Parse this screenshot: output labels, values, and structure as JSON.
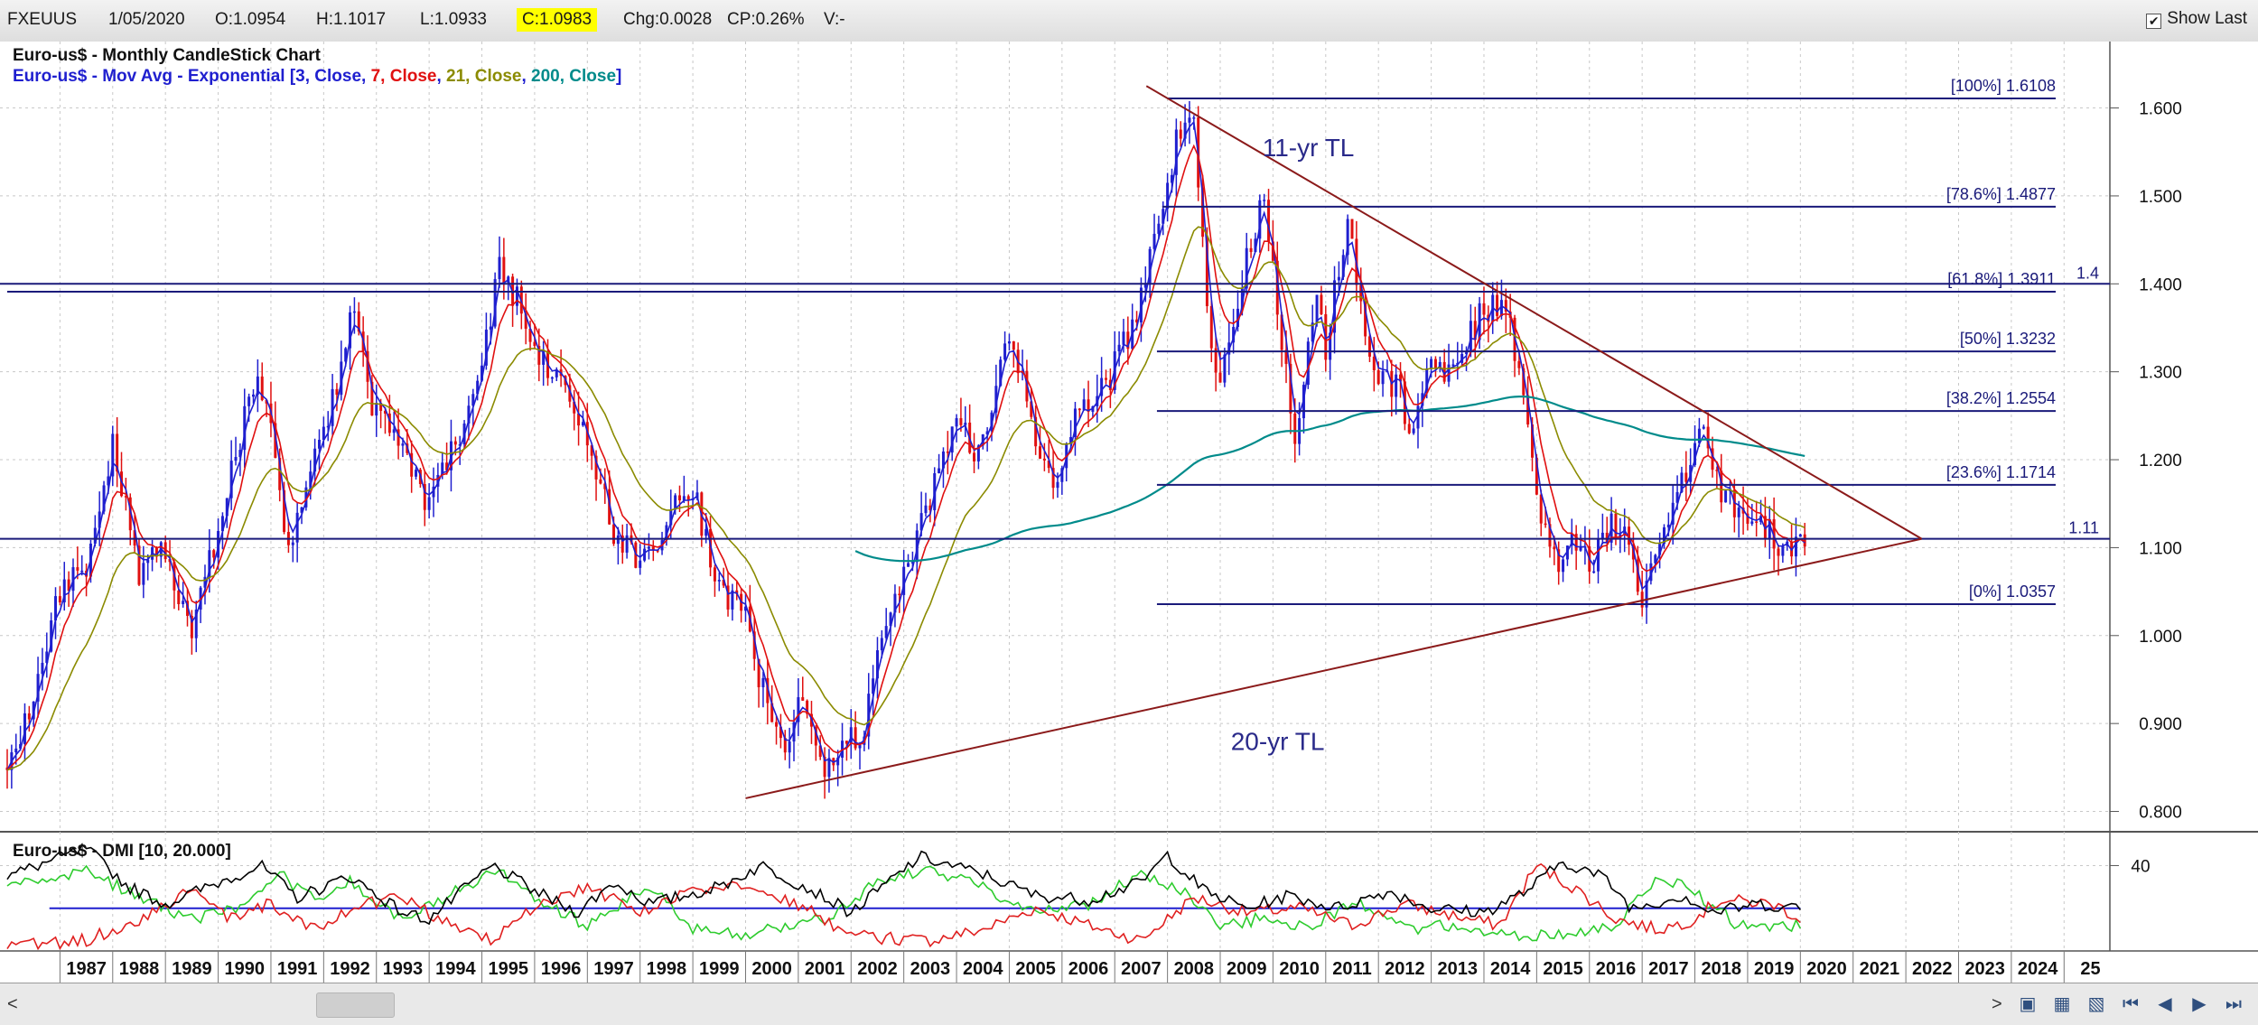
{
  "toolbar": {
    "symbol": "FXEUUS",
    "date": "1/05/2020",
    "open": "O:1.0954",
    "high": "H:1.1017",
    "low": "L:1.0933",
    "close": "C:1.0983",
    "change": "Chg:0.0028",
    "change_pct": "CP:0.26%",
    "volume": "V:-",
    "show_last_label": "Show Last",
    "show_last_checked": true
  },
  "colors": {
    "ema3": "#1f1fcf",
    "ema7": "#e01010",
    "ema21": "#8b8b00",
    "ema200": "#008b8b",
    "fib_lines": "#1a1a7a",
    "trend_lines": "#8b1a1a",
    "dmi_plus": "#2ecc2e",
    "dmi_minus": "#e02020",
    "adx": "#000000"
  },
  "bottom_nav": {
    "scroll_left": "<",
    "scroll_right": ">",
    "buttons": [
      "zoom-in",
      "zoom-out",
      "fit",
      "first",
      "prev",
      "next",
      "last"
    ]
  },
  "chart_data": [
    {
      "type": "candlestick",
      "title": "Euro-us$ - Monthly CandleStick Chart",
      "subtitle": {
        "prefix": "Euro-us$ - Mov Avg - Exponential [",
        "parts": [
          {
            "text": "3, Close",
            "color": "#1f1fcf"
          },
          {
            "text": ", ",
            "color": "#1f1fcf"
          },
          {
            "text": "7, Close",
            "color": "#e01010"
          },
          {
            "text": ", ",
            "color": "#1f1fcf"
          },
          {
            "text": "21, Close",
            "color": "#8b8b00"
          },
          {
            "text": ", ",
            "color": "#1f1fcf"
          },
          {
            "text": "200, Close",
            "color": "#008b8b"
          }
        ],
        "suffix": "]"
      },
      "x_ticks": [
        "1987",
        "1988",
        "1989",
        "1990",
        "1991",
        "1992",
        "1993",
        "1994",
        "1995",
        "1996",
        "1997",
        "1998",
        "1999",
        "2000",
        "2001",
        "2002",
        "2003",
        "2004",
        "2005",
        "2006",
        "2007",
        "2008",
        "2009",
        "2010",
        "2011",
        "2012",
        "2013",
        "2014",
        "2015",
        "2016",
        "2017",
        "2018",
        "2019",
        "2020",
        "2021",
        "2022",
        "2023",
        "2024",
        "25"
      ],
      "x_range": [
        1986.0,
        2025.8
      ],
      "y_ticks": [
        "0.800",
        "0.900",
        "1.000",
        "1.100",
        "1.200",
        "1.300",
        "1.400",
        "1.500",
        "1.600"
      ],
      "ylim": [
        0.78,
        1.655
      ],
      "grid": true,
      "price_anchors": [
        [
          1986.0,
          0.85
        ],
        [
          1986.5,
          0.92
        ],
        [
          1987.0,
          1.05
        ],
        [
          1987.5,
          1.08
        ],
        [
          1988.0,
          1.22
        ],
        [
          1988.5,
          1.07
        ],
        [
          1989.0,
          1.1
        ],
        [
          1989.5,
          1.0
        ],
        [
          1990.0,
          1.12
        ],
        [
          1990.7,
          1.3
        ],
        [
          1991.0,
          1.25
        ],
        [
          1991.3,
          1.08
        ],
        [
          1991.8,
          1.2
        ],
        [
          1992.0,
          1.22
        ],
        [
          1992.6,
          1.38
        ],
        [
          1992.9,
          1.26
        ],
        [
          1993.4,
          1.22
        ],
        [
          1994.0,
          1.15
        ],
        [
          1994.5,
          1.22
        ],
        [
          1995.0,
          1.3
        ],
        [
          1995.3,
          1.42
        ],
        [
          1995.8,
          1.37
        ],
        [
          1996.0,
          1.32
        ],
        [
          1996.5,
          1.28
        ],
        [
          1997.0,
          1.22
        ],
        [
          1997.5,
          1.12
        ],
        [
          1998.0,
          1.08
        ],
        [
          1998.4,
          1.12
        ],
        [
          1998.8,
          1.17
        ],
        [
          1999.0,
          1.17
        ],
        [
          1999.5,
          1.05
        ],
        [
          2000.0,
          1.02
        ],
        [
          2000.4,
          0.92
        ],
        [
          2000.8,
          0.85
        ],
        [
          2001.0,
          0.93
        ],
        [
          2001.5,
          0.85
        ],
        [
          2001.9,
          0.89
        ],
        [
          2002.2,
          0.87
        ],
        [
          2002.5,
          0.98
        ],
        [
          2003.0,
          1.07
        ],
        [
          2003.5,
          1.15
        ],
        [
          2004.0,
          1.26
        ],
        [
          2004.4,
          1.2
        ],
        [
          2004.9,
          1.33
        ],
        [
          2005.2,
          1.3
        ],
        [
          2005.5,
          1.21
        ],
        [
          2005.9,
          1.18
        ],
        [
          2006.3,
          1.25
        ],
        [
          2006.8,
          1.28
        ],
        [
          2007.3,
          1.35
        ],
        [
          2007.8,
          1.45
        ],
        [
          2008.2,
          1.57
        ],
        [
          2008.5,
          1.58
        ],
        [
          2008.8,
          1.35
        ],
        [
          2009.0,
          1.28
        ],
        [
          2009.3,
          1.38
        ],
        [
          2009.8,
          1.5
        ],
        [
          2010.0,
          1.42
        ],
        [
          2010.4,
          1.22
        ],
        [
          2010.8,
          1.38
        ],
        [
          2011.0,
          1.33
        ],
        [
          2011.4,
          1.47
        ],
        [
          2011.8,
          1.33
        ],
        [
          2012.0,
          1.3
        ],
        [
          2012.4,
          1.28
        ],
        [
          2012.6,
          1.22
        ],
        [
          2013.0,
          1.33
        ],
        [
          2013.3,
          1.29
        ],
        [
          2013.6,
          1.33
        ],
        [
          2014.0,
          1.37
        ],
        [
          2014.4,
          1.38
        ],
        [
          2014.8,
          1.26
        ],
        [
          2015.0,
          1.16
        ],
        [
          2015.3,
          1.08
        ],
        [
          2015.7,
          1.11
        ],
        [
          2016.0,
          1.08
        ],
        [
          2016.4,
          1.13
        ],
        [
          2016.7,
          1.11
        ],
        [
          2016.95,
          1.04
        ],
        [
          2017.4,
          1.12
        ],
        [
          2017.8,
          1.18
        ],
        [
          2018.1,
          1.24
        ],
        [
          2018.5,
          1.16
        ],
        [
          2018.9,
          1.14
        ],
        [
          2019.2,
          1.13
        ],
        [
          2019.7,
          1.1
        ],
        [
          2020.0,
          1.11
        ],
        [
          2020.1,
          1.1
        ]
      ],
      "fibonacci_levels": [
        {
          "label": "[100%] 1.6108",
          "value": 1.6108,
          "x_start": 2008.0
        },
        {
          "label": "[78.6%] 1.4877",
          "value": 1.4877,
          "x_start": 2007.9
        },
        {
          "label": "[61.8%] 1.3911",
          "value": 1.3911,
          "x_start": 1986.0
        },
        {
          "label": "[50%] 1.3232",
          "value": 1.3232,
          "x_start": 2007.8
        },
        {
          "label": "[38.2%] 1.2554",
          "value": 1.2554,
          "x_start": 2007.8
        },
        {
          "label": "[23.6%] 1.1714",
          "value": 1.1714,
          "x_start": 2007.8
        },
        {
          "label": "[0%] 1.0357",
          "value": 1.0357,
          "x_start": 2007.8
        }
      ],
      "horizontal_lines": [
        {
          "label": "1.4",
          "value": 1.4
        },
        {
          "label": "1.11",
          "value": 1.11
        }
      ],
      "trend_lines": [
        {
          "label": "11-yr TL",
          "from": [
            2007.6,
            1.625
          ],
          "to": [
            2022.3,
            1.11
          ]
        },
        {
          "label": "20-yr TL",
          "from": [
            2000.0,
            0.815
          ],
          "to": [
            2022.3,
            1.11
          ]
        }
      ],
      "ema_periods": [
        3,
        7,
        21,
        200
      ]
    },
    {
      "type": "line",
      "title": "Euro-us$ - DMI [10, 20.000]",
      "y_ticks": [
        "40"
      ],
      "ylim": [
        0,
        55
      ],
      "reference_line": 20,
      "reference_x": [
        1986.8,
        2020.0
      ],
      "series": [
        {
          "key": "plus_di",
          "anchors": [
            [
              1986.0,
              30
            ],
            [
              1987.5,
              38
            ],
            [
              1988.5,
              25
            ],
            [
              1989.5,
              15
            ],
            [
              1990.5,
              20
            ],
            [
              1991.2,
              35
            ],
            [
              1991.8,
              25
            ],
            [
              1992.5,
              32
            ],
            [
              1993.5,
              14
            ],
            [
              1994.5,
              28
            ],
            [
              1995.3,
              38
            ],
            [
              1996.0,
              24
            ],
            [
              1997.0,
              12
            ],
            [
              1998.2,
              30
            ],
            [
              1999.0,
              10
            ],
            [
              2000.0,
              8
            ],
            [
              2001.5,
              15
            ],
            [
              2002.5,
              32
            ],
            [
              2003.5,
              38
            ],
            [
              2004.5,
              30
            ],
            [
              2005.5,
              18
            ],
            [
              2006.5,
              22
            ],
            [
              2007.5,
              36
            ],
            [
              2008.2,
              30
            ],
            [
              2009.0,
              12
            ],
            [
              2010.0,
              16
            ],
            [
              2010.7,
              10
            ],
            [
              2011.5,
              24
            ],
            [
              2012.5,
              10
            ],
            [
              2013.5,
              12
            ],
            [
              2014.5,
              6
            ],
            [
              2015.5,
              8
            ],
            [
              2016.5,
              12
            ],
            [
              2017.3,
              35
            ],
            [
              2018.0,
              28
            ],
            [
              2018.8,
              12
            ],
            [
              2019.5,
              10
            ],
            [
              2020.0,
              12
            ]
          ]
        },
        {
          "key": "minus_di",
          "anchors": [
            [
              1986.0,
              2
            ],
            [
              1987.5,
              5
            ],
            [
              1988.5,
              15
            ],
            [
              1989.5,
              28
            ],
            [
              1990.2,
              15
            ],
            [
              1991.0,
              22
            ],
            [
              1991.8,
              10
            ],
            [
              1992.5,
              20
            ],
            [
              1993.5,
              26
            ],
            [
              1994.5,
              10
            ],
            [
              1995.2,
              5
            ],
            [
              1996.0,
              20
            ],
            [
              1997.0,
              30
            ],
            [
              1998.0,
              18
            ],
            [
              1999.0,
              28
            ],
            [
              2000.0,
              30
            ],
            [
              2001.0,
              22
            ],
            [
              2001.8,
              10
            ],
            [
              2002.5,
              6
            ],
            [
              2003.5,
              5
            ],
            [
              2004.5,
              10
            ],
            [
              2005.5,
              20
            ],
            [
              2006.5,
              12
            ],
            [
              2007.5,
              5
            ],
            [
              2008.5,
              25
            ],
            [
              2009.5,
              18
            ],
            [
              2010.5,
              20
            ],
            [
              2011.5,
              12
            ],
            [
              2012.5,
              22
            ],
            [
              2013.5,
              16
            ],
            [
              2014.3,
              12
            ],
            [
              2015.0,
              40
            ],
            [
              2015.8,
              28
            ],
            [
              2016.5,
              15
            ],
            [
              2017.3,
              10
            ],
            [
              2017.9,
              14
            ],
            [
              2018.5,
              24
            ],
            [
              2019.5,
              22
            ],
            [
              2020.0,
              15
            ]
          ]
        },
        {
          "key": "adx",
          "anchors": [
            [
              1986.0,
              35
            ],
            [
              1987.5,
              48
            ],
            [
              1988.3,
              30
            ],
            [
              1989.0,
              22
            ],
            [
              1990.0,
              32
            ],
            [
              1990.8,
              40
            ],
            [
              1991.5,
              25
            ],
            [
              1992.5,
              35
            ],
            [
              1993.5,
              18
            ],
            [
              1994.0,
              15
            ],
            [
              1995.2,
              40
            ],
            [
              1996.0,
              28
            ],
            [
              1996.8,
              18
            ],
            [
              1997.5,
              32
            ],
            [
              1998.2,
              22
            ],
            [
              1999.5,
              30
            ],
            [
              2000.3,
              40
            ],
            [
              2001.3,
              28
            ],
            [
              2002.0,
              18
            ],
            [
              2003.3,
              44
            ],
            [
              2004.5,
              36
            ],
            [
              2005.5,
              26
            ],
            [
              2006.5,
              24
            ],
            [
              2007.5,
              32
            ],
            [
              2008.0,
              45
            ],
            [
              2008.7,
              28
            ],
            [
              2009.5,
              20
            ],
            [
              2010.3,
              26
            ],
            [
              2011.2,
              20
            ],
            [
              2012.2,
              28
            ],
            [
              2013.0,
              20
            ],
            [
              2014.0,
              18
            ],
            [
              2014.8,
              28
            ],
            [
              2015.5,
              42
            ],
            [
              2016.3,
              34
            ],
            [
              2016.8,
              20
            ],
            [
              2017.8,
              26
            ],
            [
              2018.3,
              18
            ],
            [
              2019.2,
              22
            ],
            [
              2020.0,
              20
            ]
          ]
        }
      ]
    }
  ],
  "annotations": {
    "tl_11yr": "11-yr TL",
    "tl_20yr": "20-yr TL"
  }
}
